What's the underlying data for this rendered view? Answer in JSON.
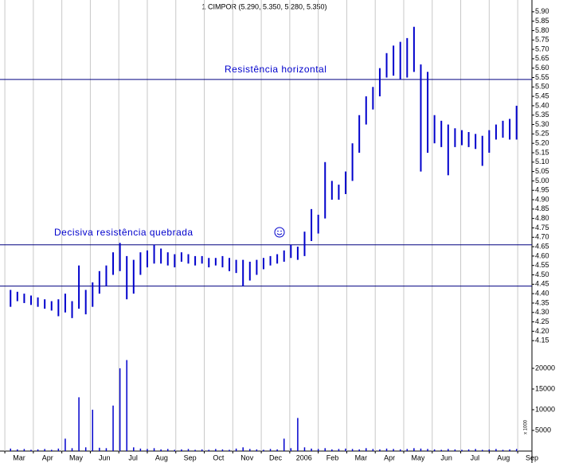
{
  "chart_data": {
    "type": "stock",
    "title": "1 CIMPOR (5.290, 5.350, 5.280, 5.350)",
    "color": "#0000cc",
    "line_color": "#000080",
    "grid": true,
    "annotations": [
      "Resistência horizontal",
      "Decisiva resistência quebrada"
    ],
    "hlines": [
      5.54,
      4.66,
      4.44
    ],
    "xlim": [
      -0.17,
      18.5
    ],
    "xticks": [
      {
        "value": 0,
        "label": "Mar"
      },
      {
        "value": 1,
        "label": "Apr"
      },
      {
        "value": 2,
        "label": "May"
      },
      {
        "value": 3,
        "label": "Jun"
      },
      {
        "value": 4,
        "label": "Jul"
      },
      {
        "value": 5,
        "label": "Aug"
      },
      {
        "value": 6,
        "label": "Sep"
      },
      {
        "value": 7,
        "label": "Oct"
      },
      {
        "value": 8,
        "label": "Nov"
      },
      {
        "value": 9,
        "label": "Dec"
      },
      {
        "value": 10,
        "label": "2006"
      },
      {
        "value": 11,
        "label": "Feb"
      },
      {
        "value": 12,
        "label": "Mar"
      },
      {
        "value": 13,
        "label": "Apr"
      },
      {
        "value": 14,
        "label": "May"
      },
      {
        "value": 15,
        "label": "Jun"
      },
      {
        "value": 16,
        "label": "Jul"
      },
      {
        "value": 17,
        "label": "Aug"
      },
      {
        "value": 18,
        "label": "Sep"
      }
    ],
    "ylim": [
      4.1,
      5.95
    ],
    "yticks": [
      {
        "value": 5.9,
        "label": "5.90"
      },
      5.85,
      {
        "value": 5.8,
        "label": "5.80"
      },
      5.75,
      {
        "value": 5.7,
        "label": "5.70"
      },
      5.65,
      {
        "value": 5.6,
        "label": "5.60"
      },
      5.55,
      {
        "value": 5.5,
        "label": "5.50"
      },
      5.45,
      {
        "value": 5.4,
        "label": "5.40"
      },
      5.35,
      {
        "value": 5.3,
        "label": "5.30"
      },
      5.25,
      {
        "value": 5.2,
        "label": "5.20"
      },
      5.15,
      {
        "value": 5.1,
        "label": "5.10"
      },
      5.05,
      {
        "value": 5.0,
        "label": "5.00"
      },
      4.95,
      {
        "value": 4.9,
        "label": "4.90"
      },
      4.85,
      {
        "value": 4.8,
        "label": "4.80"
      },
      4.75,
      {
        "value": 4.7,
        "label": "4.70"
      },
      4.65,
      {
        "value": 4.6,
        "label": "4.60"
      },
      4.55,
      {
        "value": 4.5,
        "label": "4.50"
      },
      4.45,
      {
        "value": 4.4,
        "label": "4.40"
      },
      4.35,
      {
        "value": 4.3,
        "label": "4.30"
      },
      4.25,
      {
        "value": 4.2,
        "label": "4.20"
      },
      4.15
    ],
    "volume_lim": [
      0,
      22500
    ],
    "volume_ticks": [
      5000,
      10000,
      15000,
      20000
    ],
    "volume_unit_label": "x 1000",
    "x": [
      0.2,
      0.44,
      0.68,
      0.92,
      1.16,
      1.4,
      1.64,
      1.88,
      2.12,
      2.36,
      2.6,
      2.84,
      3.08,
      3.32,
      3.56,
      3.8,
      4.04,
      4.28,
      4.52,
      4.76,
      5.0,
      5.24,
      5.48,
      5.72,
      5.96,
      6.2,
      6.44,
      6.68,
      6.92,
      7.16,
      7.4,
      7.64,
      7.88,
      8.12,
      8.36,
      8.6,
      8.84,
      9.08,
      9.32,
      9.56,
      9.8,
      10.04,
      10.28,
      10.52,
      10.76,
      11.0,
      11.24,
      11.48,
      11.72,
      11.96,
      12.2,
      12.44,
      12.68,
      12.92,
      13.16,
      13.4,
      13.64,
      13.88,
      14.12,
      14.36,
      14.6,
      14.84,
      15.08,
      15.32,
      15.56,
      15.8,
      16.04,
      16.28,
      16.52,
      16.76,
      17.0,
      17.24,
      17.48,
      17.72,
      17.96
    ],
    "high": [
      4.42,
      4.41,
      4.4,
      4.39,
      4.38,
      4.37,
      4.36,
      4.37,
      4.4,
      4.36,
      4.55,
      4.42,
      4.46,
      4.52,
      4.55,
      4.62,
      4.67,
      4.6,
      4.58,
      4.62,
      4.63,
      4.66,
      4.64,
      4.62,
      4.61,
      4.62,
      4.61,
      4.6,
      4.6,
      4.59,
      4.59,
      4.6,
      4.59,
      4.58,
      4.58,
      4.57,
      4.58,
      4.59,
      4.6,
      4.61,
      4.63,
      4.66,
      4.65,
      4.73,
      4.85,
      4.82,
      5.1,
      5.0,
      4.98,
      5.05,
      5.2,
      5.35,
      5.45,
      5.5,
      5.6,
      5.68,
      5.72,
      5.74,
      5.76,
      5.82,
      5.62,
      5.58,
      5.35,
      5.32,
      5.3,
      5.28,
      5.27,
      5.26,
      5.25,
      5.24,
      5.27,
      5.3,
      5.32,
      5.33,
      5.4
    ],
    "low": [
      4.33,
      4.36,
      4.35,
      4.34,
      4.33,
      4.32,
      4.31,
      4.28,
      4.3,
      4.27,
      4.32,
      4.29,
      4.33,
      4.4,
      4.44,
      4.5,
      4.52,
      4.37,
      4.4,
      4.5,
      4.54,
      4.56,
      4.56,
      4.55,
      4.54,
      4.57,
      4.56,
      4.55,
      4.56,
      4.54,
      4.55,
      4.54,
      4.52,
      4.51,
      4.44,
      4.47,
      4.5,
      4.53,
      4.55,
      4.56,
      4.57,
      4.59,
      4.58,
      4.6,
      4.68,
      4.72,
      4.8,
      4.9,
      4.9,
      4.93,
      5.0,
      5.15,
      5.3,
      5.38,
      5.45,
      5.55,
      5.56,
      5.54,
      5.55,
      5.58,
      5.05,
      5.15,
      5.2,
      5.18,
      5.03,
      5.18,
      5.19,
      5.18,
      5.17,
      5.08,
      5.15,
      5.22,
      5.23,
      5.22,
      5.22
    ],
    "volume": [
      600,
      400,
      500,
      300,
      400,
      500,
      300,
      600,
      3000,
      700,
      13000,
      900,
      10000,
      800,
      700,
      11000,
      20000,
      22000,
      900,
      600,
      500,
      700,
      400,
      500,
      300,
      400,
      500,
      300,
      400,
      300,
      500,
      400,
      300,
      600,
      900,
      500,
      400,
      300,
      500,
      400,
      3000,
      700,
      8000,
      900,
      600,
      500,
      700,
      400,
      500,
      600,
      500,
      400,
      700,
      500,
      400,
      600,
      500,
      400,
      500,
      700,
      600,
      500,
      400,
      300,
      500,
      400,
      300,
      400,
      500,
      300,
      400,
      500,
      300,
      400,
      500
    ]
  }
}
